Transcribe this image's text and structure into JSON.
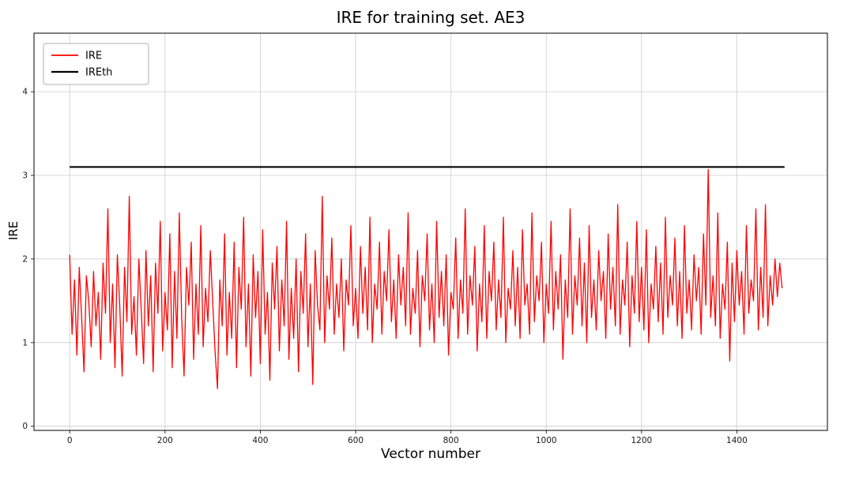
{
  "page": {
    "background": "#ffffff"
  },
  "chart_data": {
    "type": "line",
    "title": "IRE for training set. AE3",
    "xlabel": "Vector number",
    "ylabel": "IRE",
    "xlim": [
      -75,
      1590
    ],
    "ylim": [
      -0.05,
      4.7
    ],
    "xticks": [
      0,
      200,
      400,
      600,
      800,
      1000,
      1200,
      1400
    ],
    "yticks": [
      0,
      1,
      2,
      3,
      4
    ],
    "grid": true,
    "grid_color": "#cccccc",
    "legend_position": "upper-left",
    "legend": {
      "entries": [
        "IRE",
        "IREth"
      ]
    },
    "series": [
      {
        "name": "IRE",
        "kind": "noisy-line",
        "color": "#ff0000",
        "x_start": 0,
        "x_end": 1495,
        "values": [
          2.05,
          1.1,
          1.75,
          0.85,
          1.9,
          1.3,
          0.65,
          1.8,
          1.5,
          0.95,
          1.85,
          1.2,
          1.6,
          0.8,
          1.95,
          1.35,
          2.6,
          1.0,
          1.7,
          0.7,
          2.05,
          1.45,
          0.6,
          1.9,
          1.25,
          2.75,
          1.1,
          1.55,
          0.85,
          2.0,
          1.4,
          0.75,
          2.1,
          1.2,
          1.8,
          0.65,
          1.95,
          1.35,
          2.45,
          0.9,
          1.6,
          1.15,
          2.3,
          0.7,
          1.85,
          1.05,
          2.55,
          1.3,
          0.6,
          1.9,
          1.45,
          2.2,
          0.8,
          1.7,
          1.1,
          2.4,
          0.95,
          1.65,
          1.25,
          2.1,
          1.5,
          0.9,
          0.45,
          1.75,
          1.2,
          2.3,
          0.85,
          1.6,
          1.05,
          2.2,
          0.7,
          1.9,
          1.4,
          2.5,
          0.95,
          1.7,
          0.6,
          2.05,
          1.3,
          1.85,
          0.75,
          2.35,
          1.1,
          1.6,
          0.55,
          1.95,
          1.4,
          2.15,
          0.9,
          1.75,
          1.2,
          2.45,
          0.8,
          1.65,
          1.05,
          2.0,
          0.65,
          1.85,
          1.35,
          2.3,
          0.95,
          1.7,
          0.5,
          2.1,
          1.45,
          1.15,
          2.75,
          1.0,
          1.8,
          1.4,
          2.25,
          1.1,
          1.7,
          1.3,
          2.0,
          0.9,
          1.75,
          1.45,
          2.4,
          1.2,
          1.65,
          1.05,
          2.15,
          1.35,
          1.9,
          1.15,
          2.5,
          1.0,
          1.7,
          1.4,
          2.2,
          1.1,
          1.85,
          1.5,
          2.35,
          1.25,
          1.75,
          1.05,
          2.05,
          1.45,
          1.9,
          1.2,
          2.55,
          1.1,
          1.65,
          1.35,
          2.1,
          0.95,
          1.8,
          1.5,
          2.3,
          1.15,
          1.7,
          1.0,
          2.45,
          1.3,
          1.85,
          1.2,
          2.05,
          0.85,
          1.6,
          1.4,
          2.25,
          1.05,
          1.75,
          1.35,
          2.6,
          1.1,
          1.8,
          1.45,
          2.15,
          0.9,
          1.7,
          1.25,
          2.4,
          1.05,
          1.85,
          1.5,
          2.2,
          1.15,
          1.75,
          1.3,
          2.5,
          1.0,
          1.65,
          1.4,
          2.1,
          1.2,
          1.9,
          1.05,
          2.35,
          1.45,
          1.7,
          1.1,
          2.55,
          1.25,
          1.8,
          1.5,
          2.2,
          1.0,
          1.7,
          1.35,
          2.45,
          1.15,
          1.85,
          1.4,
          2.05,
          0.8,
          1.75,
          1.3,
          2.6,
          1.1,
          1.8,
          1.45,
          2.25,
          1.2,
          1.95,
          1.0,
          2.4,
          1.3,
          1.75,
          1.15,
          2.1,
          1.5,
          1.85,
          1.05,
          2.3,
          1.4,
          1.9,
          1.2,
          2.65,
          1.1,
          1.75,
          1.45,
          2.2,
          0.95,
          1.8,
          1.35,
          2.45,
          1.25,
          1.9,
          1.15,
          2.35,
          1.0,
          1.7,
          1.4,
          2.15,
          1.25,
          1.95,
          1.1,
          2.5,
          1.3,
          1.8,
          1.45,
          2.25,
          1.2,
          1.85,
          1.05,
          2.4,
          1.35,
          1.75,
          1.15,
          2.05,
          1.5,
          1.9,
          1.1,
          2.3,
          1.45,
          3.07,
          1.3,
          1.8,
          1.2,
          2.55,
          1.05,
          1.7,
          1.4,
          2.2,
          0.78,
          1.95,
          1.25,
          2.1,
          1.45,
          1.85,
          1.1,
          2.4,
          1.35,
          1.75,
          1.5,
          2.6,
          1.15,
          1.9,
          1.3,
          2.65,
          1.2,
          1.8,
          1.45,
          2.0,
          1.55,
          1.95,
          1.65
        ]
      },
      {
        "name": "IREth",
        "kind": "hline",
        "color": "#000000",
        "value": 3.1,
        "x_start": 0,
        "x_end": 1500
      }
    ]
  }
}
